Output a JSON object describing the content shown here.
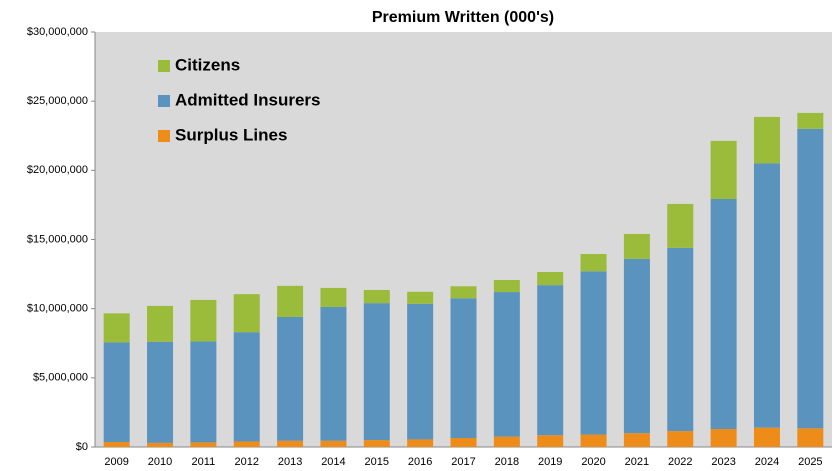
{
  "chart_data": {
    "type": "stacked_bar",
    "title": "Premium Written (000's)",
    "categories": [
      "2009",
      "2010",
      "2011",
      "2012",
      "2013",
      "2014",
      "2015",
      "2016",
      "2017",
      "2018",
      "2019",
      "2020",
      "2021",
      "2022",
      "2023",
      "2024",
      "2025"
    ],
    "series": [
      {
        "name": "Surplus Lines",
        "color": "#ee8c1a",
        "values": [
          360000,
          300000,
          330000,
          400000,
          450000,
          450000,
          500000,
          550000,
          650000,
          750000,
          850000,
          900000,
          1000000,
          1150000,
          1300000,
          1400000,
          1350000
        ]
      },
      {
        "name": "Admitted Insurers",
        "color": "#5b93bf",
        "values": [
          7200000,
          7300000,
          7300000,
          7900000,
          8950000,
          9670000,
          9900000,
          9800000,
          10100000,
          10450000,
          10850000,
          11800000,
          12600000,
          13250000,
          16630000,
          19100000,
          21650000
        ]
      },
      {
        "name": "Citizens",
        "color": "#9bbb3b",
        "values": [
          2100000,
          2600000,
          3000000,
          2750000,
          2250000,
          1380000,
          950000,
          870000,
          870000,
          870000,
          950000,
          1250000,
          1800000,
          3170000,
          4200000,
          3360000,
          1150000
        ]
      }
    ],
    "ylim": [
      0,
      30000000
    ],
    "yticks": [
      {
        "value": 0,
        "label": "$0"
      },
      {
        "value": 5000000,
        "label": "$5,000,000"
      },
      {
        "value": 10000000,
        "label": "$10,000,000"
      },
      {
        "value": 15000000,
        "label": "$15,000,000"
      },
      {
        "value": 20000000,
        "label": "$20,000,000"
      },
      {
        "value": 25000000,
        "label": "$25,000,000"
      },
      {
        "value": 30000000,
        "label": "$30,000,000"
      }
    ],
    "legend": "top-left"
  }
}
